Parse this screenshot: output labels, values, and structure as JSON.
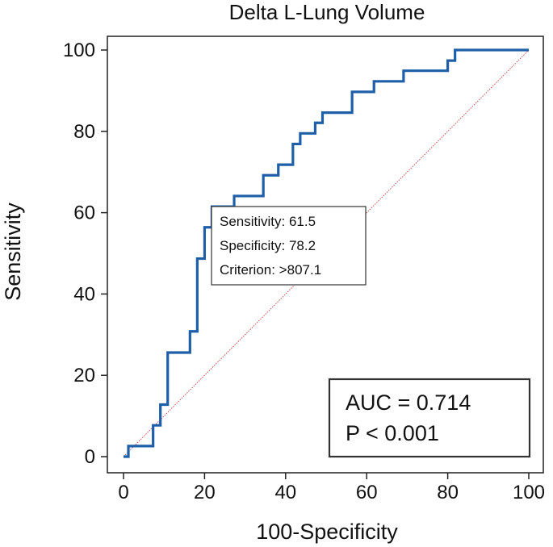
{
  "chart_data": {
    "type": "line",
    "title": "Delta L-Lung Volume",
    "xlabel": "100-Specificity",
    "ylabel": "Sensitivity",
    "xlim": [
      0,
      100
    ],
    "ylim": [
      0,
      100
    ],
    "x_ticks": [
      "0",
      "20",
      "40",
      "60",
      "80",
      "100"
    ],
    "y_ticks": [
      "0",
      "20",
      "40",
      "60",
      "80",
      "100"
    ],
    "grid": false,
    "series": [
      {
        "color": "#1f5fa8",
        "style": "step",
        "points": [
          [
            0,
            0
          ],
          [
            1.2,
            0
          ],
          [
            1.2,
            2.6
          ],
          [
            7.3,
            2.6
          ],
          [
            7.3,
            7.7
          ],
          [
            9.1,
            7.7
          ],
          [
            9.1,
            12.8
          ],
          [
            10.9,
            12.8
          ],
          [
            10.9,
            25.6
          ],
          [
            16.4,
            25.6
          ],
          [
            16.4,
            30.8
          ],
          [
            18.2,
            30.8
          ],
          [
            18.2,
            48.7
          ],
          [
            20,
            48.7
          ],
          [
            20,
            56.4
          ],
          [
            21.8,
            56.4
          ],
          [
            21.8,
            61.5
          ],
          [
            27.3,
            61.5
          ],
          [
            27.3,
            64.1
          ],
          [
            34.5,
            64.1
          ],
          [
            34.5,
            69.2
          ],
          [
            38.2,
            69.2
          ],
          [
            38.2,
            71.8
          ],
          [
            41.8,
            71.8
          ],
          [
            41.8,
            76.9
          ],
          [
            43.6,
            76.9
          ],
          [
            43.6,
            79.5
          ],
          [
            47.3,
            79.5
          ],
          [
            47.3,
            82.1
          ],
          [
            49.1,
            82.1
          ],
          [
            49.1,
            84.6
          ],
          [
            56.4,
            84.6
          ],
          [
            56.4,
            89.7
          ],
          [
            61.8,
            89.7
          ],
          [
            61.8,
            92.3
          ],
          [
            69.1,
            92.3
          ],
          [
            69.1,
            94.9
          ],
          [
            80,
            94.9
          ],
          [
            80,
            97.4
          ],
          [
            81.8,
            97.4
          ],
          [
            81.8,
            100
          ],
          [
            100,
            100
          ]
        ]
      },
      {
        "color": "#c0504d",
        "style": "dotted-diagonal",
        "points": [
          [
            0,
            0
          ],
          [
            100,
            100
          ]
        ]
      }
    ],
    "annotations": {
      "criterion_box": {
        "lines": [
          "Sensitivity: 61.5",
          "Specificity: 78.2",
          "Criterion: >807.1"
        ],
        "anchor": [
          21.8,
          61.5
        ]
      },
      "stats_box": {
        "lines": [
          "AUC = 0.714",
          "P < 0.001"
        ],
        "placement": "bottom-right"
      }
    }
  }
}
